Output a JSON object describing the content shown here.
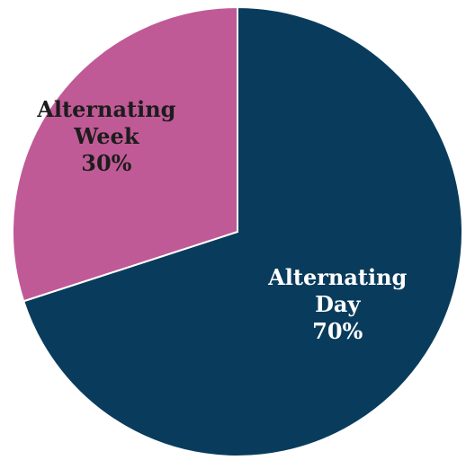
{
  "chart_data": {
    "type": "pie",
    "slices": [
      {
        "label_lines": [
          "Alternating",
          "Day",
          "70%"
        ],
        "value": 70,
        "color": "#093C5C",
        "text_color": "#ffffff"
      },
      {
        "label_lines": [
          "Alternating",
          "Week",
          "30%"
        ],
        "value": 30,
        "color": "#C05A96",
        "text_color": "#1c1c1c"
      }
    ],
    "start_angle": "12 o'clock",
    "direction": "clockwise",
    "legend": "none"
  }
}
